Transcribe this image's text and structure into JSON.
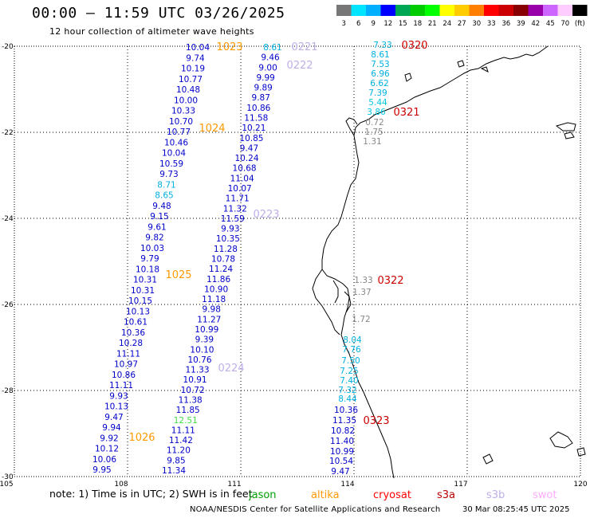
{
  "header": {
    "title": "00:00 – 11:59 UTC 03/26/2025",
    "subtitle": "12 hour collection of altimeter wave heights"
  },
  "colorbar": {
    "colors": [
      "#777777",
      "#00e5ff",
      "#00b0ff",
      "#0000ff",
      "#00a651",
      "#00cc00",
      "#00ff00",
      "#ffff00",
      "#ffcc00",
      "#ff8000",
      "#ff0000",
      "#cc0000",
      "#880000",
      "#9900aa",
      "#cc66ff",
      "#ffccff",
      "#000000"
    ],
    "labels": [
      "3",
      "6",
      "9",
      "12",
      "15",
      "18",
      "21",
      "24",
      "27",
      "30",
      "33",
      "36",
      "39",
      "42",
      "45",
      "70",
      "(ft)"
    ]
  },
  "axes": {
    "x_ticks": [
      "105",
      "108",
      "111",
      "114",
      "117",
      "120"
    ],
    "y_ticks": [
      "-20",
      "-22",
      "-24",
      "-26",
      "-28",
      "-30"
    ]
  },
  "tracks": {
    "pass_a": {
      "color": "#00008b",
      "values": [
        "10.04",
        "9.74",
        "10.19",
        "10.77",
        "10.48",
        "10.00",
        "10.33",
        "10.70",
        "10.77",
        "10.46",
        "10.04",
        "10.59",
        "9.73",
        "8.71",
        "8.65",
        "9.48",
        "9.15",
        "9.61",
        "9.82",
        "10.03",
        "9.79",
        "10.18",
        "10.31",
        "10.31",
        "10.15",
        "10.13",
        "10.61",
        "10.36",
        "10.28",
        "11.11",
        "10.97",
        "10.86",
        "11.11",
        "9.93",
        "10.13",
        "9.47",
        "9.94",
        "9.92",
        "10.12",
        "10.06",
        "9.95"
      ]
    },
    "pass_b": {
      "values": [
        "8.61",
        "9.46",
        "9.00",
        "9.99",
        "9.89",
        "9.87",
        "10.86",
        "11.58",
        "10.21",
        "10.85",
        "9.47",
        "10.24",
        "10.68",
        "11.04",
        "10.07",
        "11.71",
        "11.32",
        "11.59",
        "9.93",
        "10.35",
        "11.28",
        "10.78",
        "11.24",
        "11.86",
        "10.90",
        "11.18",
        "9.98",
        "11.27",
        "10.99",
        "9.39",
        "10.10",
        "10.76",
        "11.33",
        "10.91",
        "10.72",
        "11.38",
        "11.85",
        "12.51",
        "11.11",
        "11.42",
        "11.20",
        "9.85",
        "11.34"
      ]
    },
    "pass_c": {
      "values": [
        "7.33",
        "8.61",
        "7.53",
        "6.96",
        "6.62",
        "7.39",
        "5.44",
        "3.86",
        "0.72",
        "1.75",
        "1.31",
        "1.33",
        "1.37",
        "1.72",
        "8.04",
        "7.76",
        "7.50",
        "7.25",
        "7.40",
        "7.32",
        "8.44",
        "10.36",
        "11.35",
        "10.82",
        "11.40",
        "10.99",
        "10.54",
        "9.47"
      ]
    }
  },
  "date_labels": [
    "1023",
    "1024",
    "1025",
    "1026",
    "0221",
    "0222",
    "0223",
    "0224",
    "0320",
    "0321",
    "0322",
    "0323"
  ],
  "footer": {
    "note_prefix": "note:  1) Time is in UTC;  2) SWH is in feet",
    "sat_jason": "jason",
    "sat_altika": "altika",
    "sat_cryosat": "cryosat",
    "sat_s3a": "s3a",
    "sat_s3b": "s3b",
    "sat_swot": "swot",
    "credit": "NOAA/NESDIS Center for Satellite Applications and Research",
    "timestamp": "30 Mar 08:25:45 UTC 2025"
  }
}
